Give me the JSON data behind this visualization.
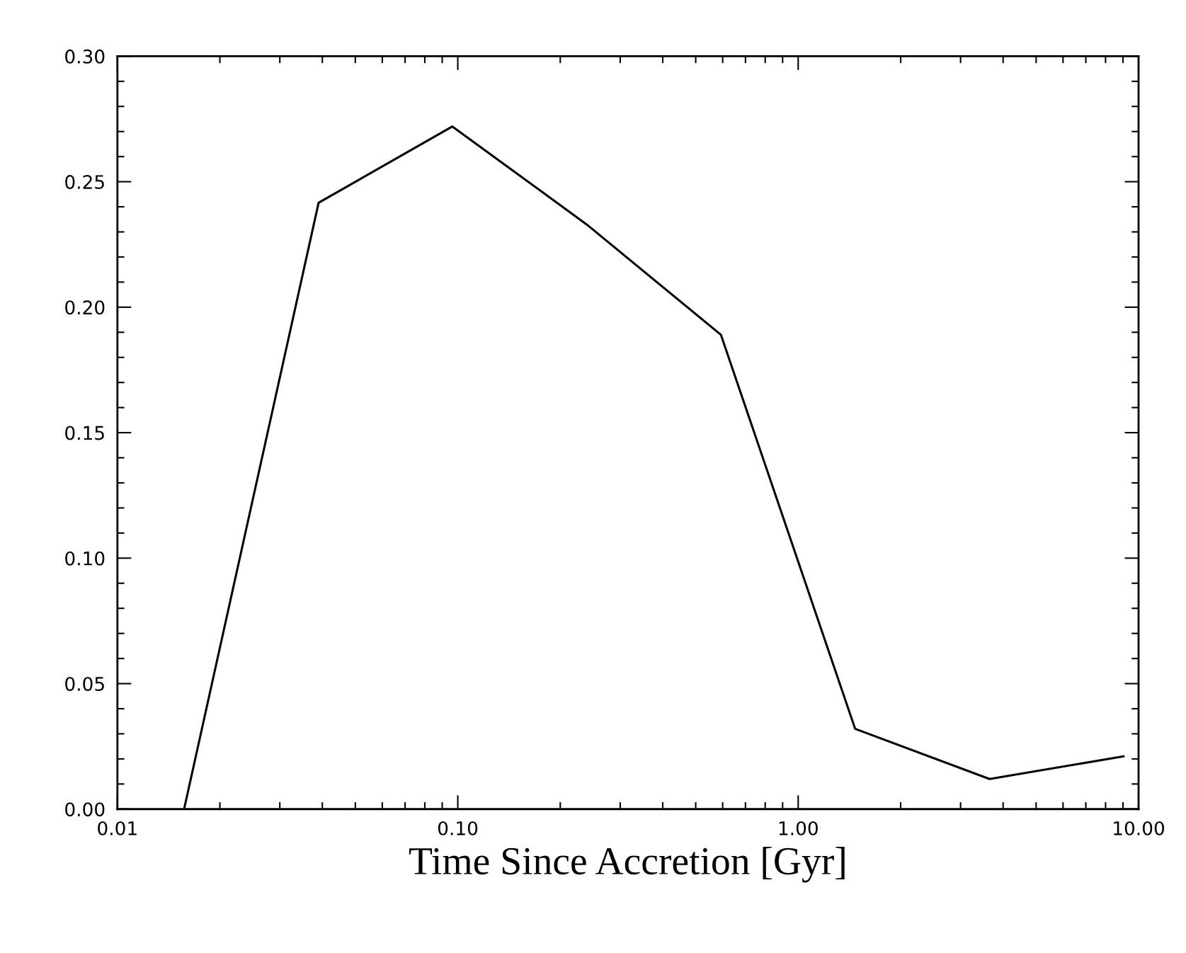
{
  "chart_data": {
    "type": "line",
    "xlabel": "Time Since Accretion [Gyr]",
    "log": "x",
    "x": [
      0.0157,
      0.039,
      0.0964,
      0.239,
      0.593,
      1.47,
      3.65,
      9.03
    ],
    "series": [
      {
        "color": "#000000",
        "values": [
          0.0,
          0.2416,
          0.272,
          0.233,
          0.189,
          0.032,
          0.012,
          0.021
        ]
      }
    ],
    "xlim": [
      0.01,
      10
    ],
    "xticks": [
      {
        "value": 0.01,
        "label": "0.01"
      },
      {
        "value": 0.1,
        "label": "0.10"
      },
      {
        "value": 1,
        "label": "1.00"
      },
      {
        "value": 10,
        "label": "10.00"
      }
    ],
    "ylim": [
      0,
      0.3
    ],
    "yticks": [
      {
        "value": 0,
        "label": "0.00"
      },
      {
        "value": 0.05,
        "label": "0.05"
      },
      {
        "value": 0.1,
        "label": "0.10"
      },
      {
        "value": 0.15,
        "label": "0.15"
      },
      {
        "value": 0.2,
        "label": "0.20"
      },
      {
        "value": 0.25,
        "label": "0.25"
      },
      {
        "value": 0.3,
        "label": "0.30"
      }
    ],
    "grid": false,
    "legend": false,
    "marker": "none",
    "line_style": "solid"
  }
}
